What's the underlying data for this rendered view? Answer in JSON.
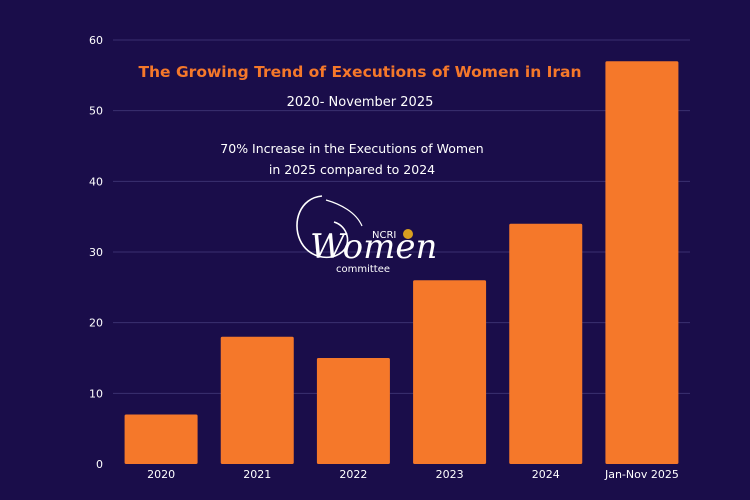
{
  "chart_data": {
    "type": "bar",
    "title": "The Growing Trend of Executions of Women in Iran",
    "subtitle": "2020- November 2025",
    "annotation_lines": [
      "70% Increase in the Executions of Women",
      "in 2025 compared to 2024"
    ],
    "categories": [
      "2020",
      "2021",
      "2022",
      "2023",
      "2024",
      "Jan-Nov 2025"
    ],
    "values": [
      7,
      18,
      15,
      26,
      34,
      57
    ],
    "yticks": [
      "0",
      "10",
      "20",
      "30",
      "40",
      "50",
      "60"
    ],
    "ylim": [
      0,
      60
    ],
    "xlabel": "",
    "ylabel": "",
    "grid": true,
    "bar_color": "#f5782a",
    "background_color": "#1a0d4a"
  },
  "logo": {
    "top": "NCRI",
    "main": "Women",
    "bottom": "committee"
  }
}
